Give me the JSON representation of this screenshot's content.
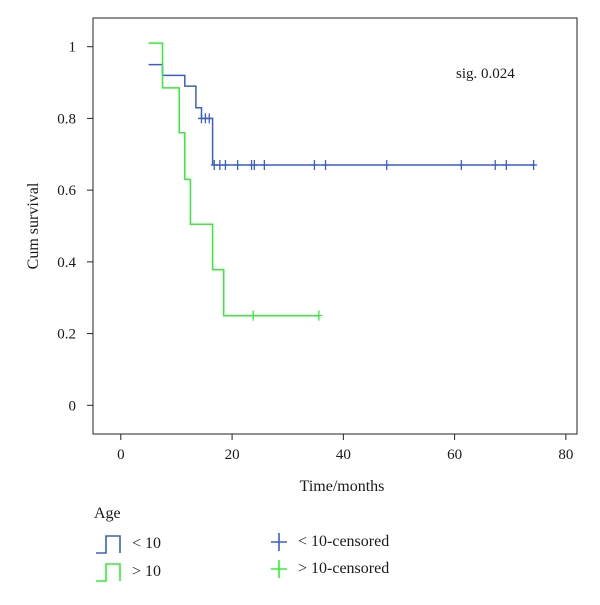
{
  "chart_data": {
    "type": "line",
    "subtype": "kaplan-meier-step",
    "title": "",
    "xlabel": "Time/months",
    "ylabel": "Cum survival",
    "xlim": [
      -5,
      82
    ],
    "ylim": [
      -0.08,
      1.08
    ],
    "xticks": [
      0,
      20,
      40,
      60,
      80
    ],
    "yticks": [
      0,
      0.2,
      0.4,
      0.6,
      0.8,
      1
    ],
    "grid": false,
    "annotation": "sig. 0.024",
    "series": [
      {
        "name": "< 10",
        "color": "#3a5fcd",
        "steps": [
          [
            5,
            0.95
          ],
          [
            7.5,
            0.95
          ],
          [
            7.5,
            0.92
          ],
          [
            11.5,
            0.92
          ],
          [
            11.5,
            0.89
          ],
          [
            13.5,
            0.89
          ],
          [
            13.5,
            0.83
          ],
          [
            14.5,
            0.83
          ],
          [
            14.5,
            0.8
          ],
          [
            16.5,
            0.8
          ],
          [
            16.5,
            0.67
          ],
          [
            74.5,
            0.67
          ]
        ],
        "censored": [
          [
            14.5,
            0.8
          ],
          [
            15.2,
            0.8
          ],
          [
            15.9,
            0.8
          ],
          [
            16.8,
            0.67
          ],
          [
            17.8,
            0.67
          ],
          [
            18.8,
            0.67
          ],
          [
            21,
            0.67
          ],
          [
            23.5,
            0.67
          ],
          [
            24,
            0.67
          ],
          [
            25.8,
            0.67
          ],
          [
            34.8,
            0.67
          ],
          [
            36.8,
            0.67
          ],
          [
            47.8,
            0.67
          ],
          [
            61.2,
            0.67
          ],
          [
            67.3,
            0.67
          ],
          [
            69.3,
            0.67
          ],
          [
            74.2,
            0.67
          ]
        ]
      },
      {
        "name": "> 10",
        "color": "#33ee33",
        "steps": [
          [
            5,
            1.01
          ],
          [
            7.5,
            1.01
          ],
          [
            7.5,
            0.885
          ],
          [
            10.5,
            0.885
          ],
          [
            10.5,
            0.76
          ],
          [
            11.5,
            0.76
          ],
          [
            11.5,
            0.63
          ],
          [
            12.5,
            0.63
          ],
          [
            12.5,
            0.505
          ],
          [
            16.5,
            0.505
          ],
          [
            16.5,
            0.378
          ],
          [
            18.5,
            0.378
          ],
          [
            18.5,
            0.25
          ],
          [
            35.8,
            0.25
          ]
        ],
        "censored": [
          [
            23.8,
            0.25
          ],
          [
            35.6,
            0.25
          ]
        ]
      }
    ]
  },
  "legend": {
    "title": "Age",
    "items": [
      {
        "label": "< 10",
        "kind": "line",
        "color": "#3a5fcd"
      },
      {
        "label": "> 10",
        "kind": "line",
        "color": "#33ee33"
      },
      {
        "label": "< 10-censored",
        "kind": "censor",
        "color": "#3a5fcd"
      },
      {
        "label": "> 10-censored",
        "kind": "censor",
        "color": "#33ee33"
      }
    ]
  }
}
